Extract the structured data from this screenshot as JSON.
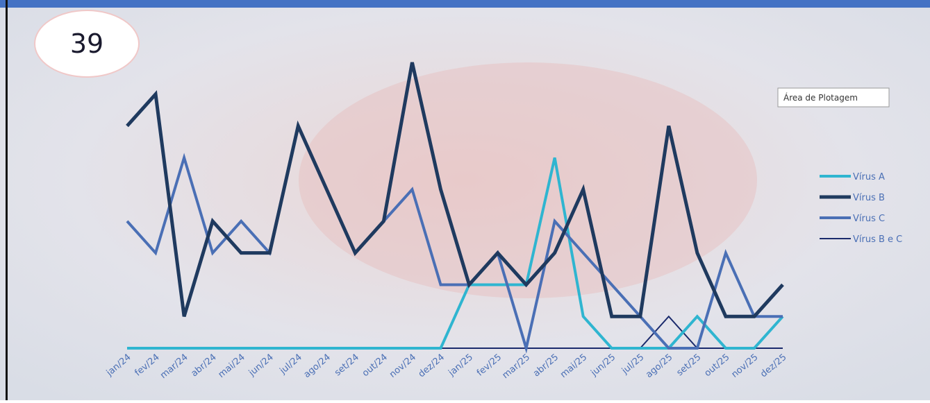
{
  "badge": "39",
  "tooltip": "Área de Plotagem",
  "chart_data": {
    "type": "line",
    "categories": [
      "jan/24",
      "fev/24",
      "mar/24",
      "abr/24",
      "mai/24",
      "jun/24",
      "jul/24",
      "ago/24",
      "set/24",
      "out/24",
      "nov/24",
      "dez/24",
      "jan/25",
      "fev/25",
      "mar/25",
      "abr/25",
      "mai/25",
      "jun/25",
      "jul/25",
      "ago/25",
      "set/25",
      "out/25",
      "nov/25",
      "dez/25"
    ],
    "ylim": [
      0,
      9
    ],
    "series": [
      {
        "name": "Vírus A",
        "color": "#2fb5d0",
        "values": [
          0,
          0,
          0,
          0,
          0,
          0,
          0,
          0,
          0,
          0,
          0,
          0,
          2,
          2,
          2,
          6,
          1,
          0,
          0,
          0,
          1,
          0,
          0,
          1
        ]
      },
      {
        "name": "Vírus B",
        "color": "#1f3a5f",
        "values": [
          7,
          8,
          1,
          4,
          3,
          3,
          7,
          5,
          3,
          4,
          9,
          5,
          2,
          3,
          2,
          3,
          5,
          1,
          1,
          7,
          3,
          1,
          1,
          2
        ]
      },
      {
        "name": "Vírus C",
        "color": "#4a6fb5",
        "values": [
          4,
          3,
          6,
          3,
          4,
          3,
          7,
          5,
          3,
          4,
          5,
          2,
          2,
          3,
          0,
          4,
          3,
          2,
          1,
          0,
          0,
          3,
          1,
          1
        ]
      },
      {
        "name": "Vírus B e C",
        "color": "#1a2a6c",
        "values": [
          0,
          0,
          0,
          0,
          0,
          0,
          0,
          0,
          0,
          0,
          0,
          0,
          0,
          0,
          0,
          0,
          0,
          0,
          0,
          1,
          0,
          0,
          0,
          0
        ]
      }
    ]
  }
}
